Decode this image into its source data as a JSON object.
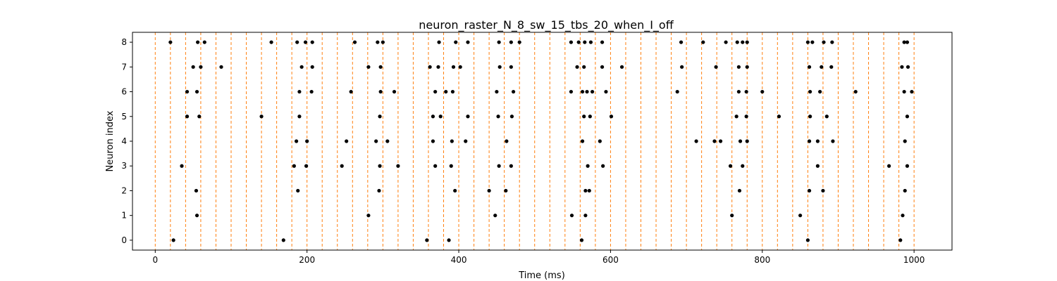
{
  "chart_data": {
    "type": "scatter",
    "title": "neuron_raster_N_8_sw_15_tbs_20_when_I_off",
    "xlabel": "Time (ms)",
    "ylabel": "Neuron index",
    "xlim": [
      -30,
      1050
    ],
    "ylim": [
      -0.4,
      8.4
    ],
    "xticks": [
      0,
      200,
      400,
      600,
      800,
      1000
    ],
    "yticks": [
      0,
      1,
      2,
      3,
      4,
      5,
      6,
      7,
      8
    ],
    "time_bin_boundaries_ms": [
      0,
      20,
      40,
      60,
      80,
      100,
      120,
      140,
      160,
      180,
      200,
      220,
      240,
      260,
      280,
      300,
      320,
      340,
      360,
      380,
      400,
      420,
      440,
      460,
      480,
      500,
      520,
      540,
      560,
      580,
      600,
      620,
      640,
      660,
      680,
      700,
      720,
      740,
      760,
      780,
      800,
      820,
      840,
      860,
      880,
      900,
      920,
      940,
      960,
      980,
      1000
    ],
    "colors": {
      "spike": "#000000",
      "bin_line": "#ff7f0e"
    },
    "spikes": [
      {
        "neuron": 0,
        "times": [
          24,
          169,
          358,
          387,
          562,
          860,
          982
        ]
      },
      {
        "neuron": 1,
        "times": [
          55,
          281,
          448,
          549,
          567,
          760,
          850,
          985
        ]
      },
      {
        "neuron": 2,
        "times": [
          54,
          188,
          295,
          395,
          440,
          462,
          567,
          572,
          770,
          862,
          880,
          988
        ]
      },
      {
        "neuron": 3,
        "times": [
          35,
          183,
          199,
          246,
          296,
          320,
          369,
          390,
          453,
          469,
          570,
          590,
          758,
          774,
          873,
          967,
          991
        ]
      },
      {
        "neuron": 4,
        "times": [
          186,
          200,
          252,
          291,
          306,
          366,
          391,
          409,
          463,
          563,
          586,
          713,
          737,
          745,
          771,
          780,
          862,
          873,
          893,
          988
        ]
      },
      {
        "neuron": 5,
        "times": [
          140,
          42,
          58,
          190,
          296,
          366,
          376,
          412,
          452,
          470,
          565,
          573,
          601,
          766,
          779,
          822,
          863,
          885,
          991
        ]
      },
      {
        "neuron": 6,
        "times": [
          42,
          55,
          190,
          206,
          258,
          297,
          315,
          369,
          383,
          392,
          450,
          472,
          548,
          563,
          569,
          576,
          594,
          688,
          769,
          779,
          800,
          863,
          876,
          923,
          987,
          997
        ]
      },
      {
        "neuron": 7,
        "times": [
          50,
          60,
          87,
          193,
          207,
          281,
          297,
          362,
          373,
          393,
          402,
          454,
          469,
          556,
          565,
          589,
          615,
          694,
          739,
          769,
          780,
          862,
          878,
          891,
          984,
          992
        ]
      },
      {
        "neuron": 8,
        "times": [
          20,
          153,
          56,
          65,
          187,
          198,
          207,
          263,
          293,
          300,
          374,
          396,
          412,
          453,
          469,
          480,
          548,
          558,
          566,
          574,
          589,
          693,
          722,
          752,
          767,
          774,
          780,
          860,
          866,
          881,
          892,
          987,
          991
        ]
      }
    ]
  }
}
